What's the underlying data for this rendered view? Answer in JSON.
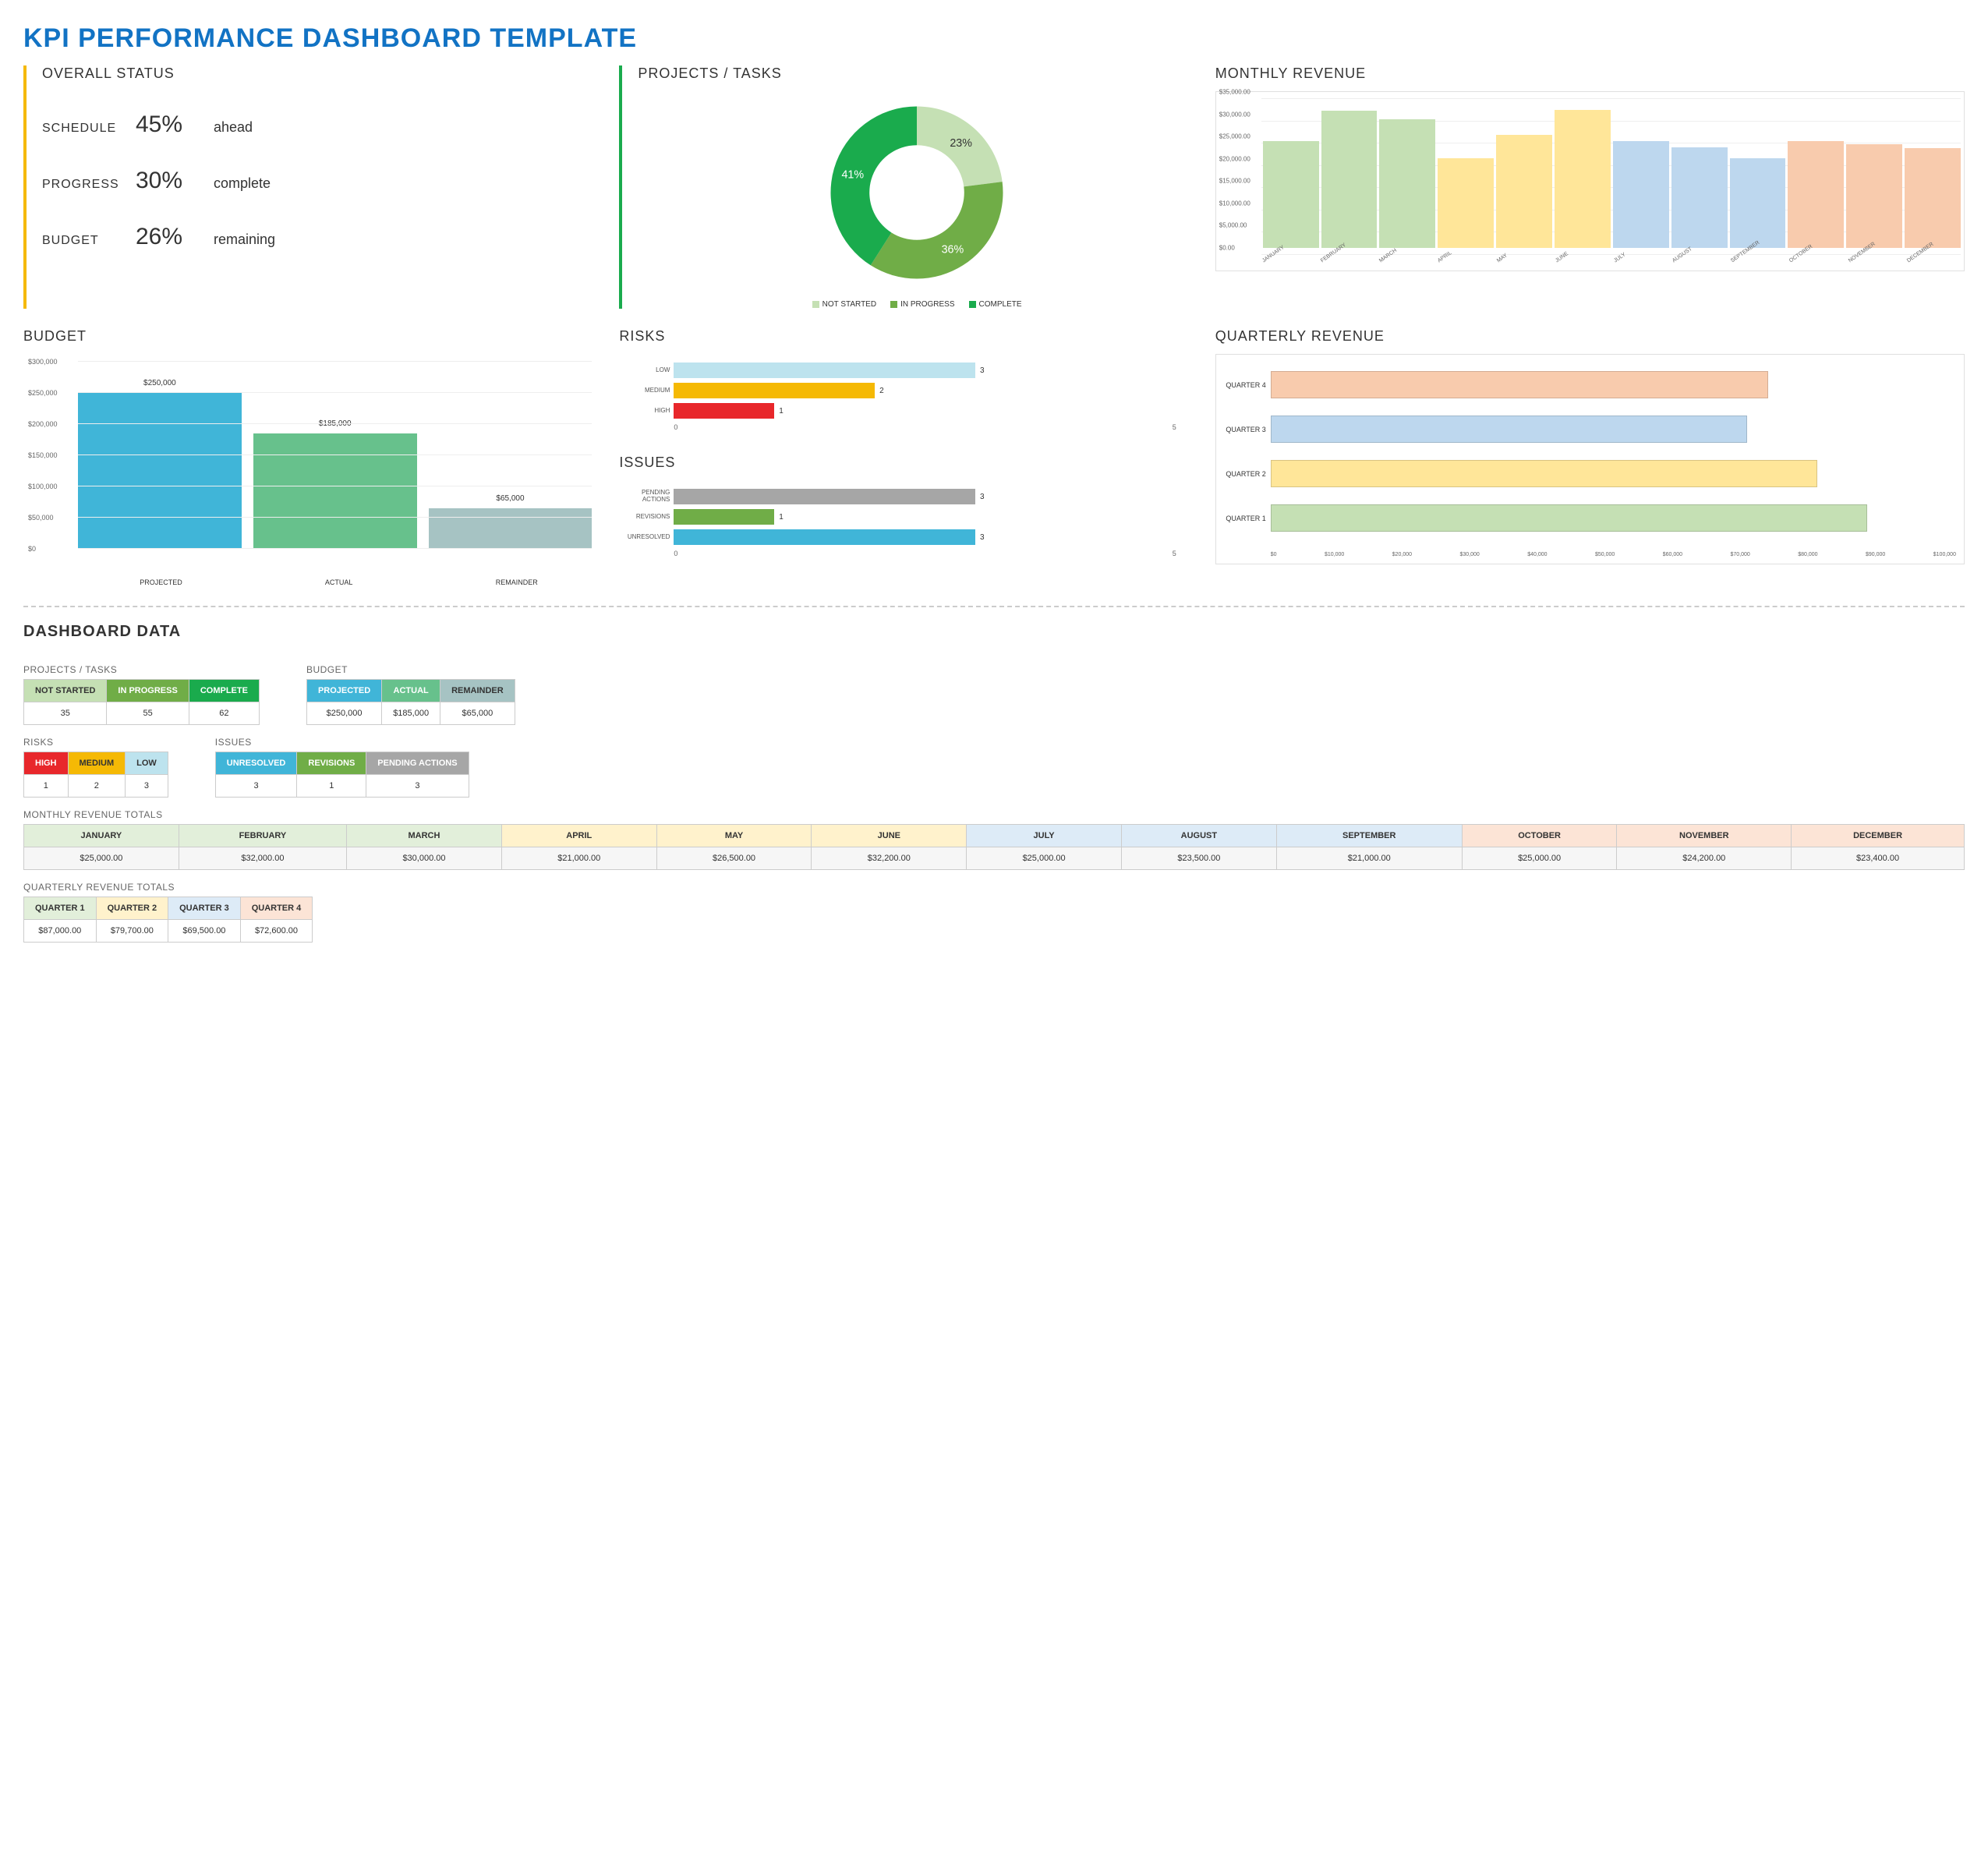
{
  "title": "KPI PERFORMANCE DASHBOARD TEMPLATE",
  "title_color": "#1273c4",
  "overall_status": {
    "title": "OVERALL STATUS",
    "accent_color": "#f5b905",
    "rows": [
      {
        "label": "SCHEDULE",
        "value": "45%",
        "suffix": "ahead"
      },
      {
        "label": "PROGRESS",
        "value": "30%",
        "suffix": "complete"
      },
      {
        "label": "BUDGET",
        "value": "26%",
        "suffix": "remaining"
      }
    ]
  },
  "projects_tasks": {
    "title": "PROJECTS / TASKS",
    "accent_color": "#1aab4d",
    "slices": [
      {
        "label": "NOT STARTED",
        "pct": 23,
        "color": "#c5e0b4"
      },
      {
        "label": "IN PROGRESS",
        "pct": 36,
        "color": "#70ad47"
      },
      {
        "label": "COMPLETE",
        "pct": 41,
        "color": "#1aab4d"
      }
    ],
    "label_fontsize": 10,
    "inner_radius_pct": 55
  },
  "monthly_revenue": {
    "title": "MONTHLY REVENUE",
    "type": "bar",
    "ylim": [
      0,
      35000
    ],
    "ytick_step": 5000,
    "grid_color": "#eeeeee",
    "border_color": "#e0e0e0",
    "bars": [
      {
        "label": "JANUARY",
        "value": 25000,
        "color": "#c5e0b4"
      },
      {
        "label": "FEBRUARY",
        "value": 32000,
        "color": "#c5e0b4"
      },
      {
        "label": "MARCH",
        "value": 30000,
        "color": "#c5e0b4"
      },
      {
        "label": "APRIL",
        "value": 21000,
        "color": "#ffe699"
      },
      {
        "label": "MAY",
        "value": 26500,
        "color": "#ffe699"
      },
      {
        "label": "JUNE",
        "value": 32200,
        "color": "#ffe699"
      },
      {
        "label": "JULY",
        "value": 25000,
        "color": "#bdd7ee"
      },
      {
        "label": "AUGUST",
        "value": 23500,
        "color": "#bdd7ee"
      },
      {
        "label": "SEPTEMBER",
        "value": 21000,
        "color": "#bdd7ee"
      },
      {
        "label": "OCTOBER",
        "value": 25000,
        "color": "#f8cbad"
      },
      {
        "label": "NOVEMBER",
        "value": 24200,
        "color": "#f8cbad"
      },
      {
        "label": "DECEMBER",
        "value": 23400,
        "color": "#f8cbad"
      }
    ]
  },
  "budget_chart": {
    "title": "BUDGET",
    "type": "bar",
    "ylim": [
      0,
      300000
    ],
    "ytick_step": 50000,
    "bars": [
      {
        "label": "PROJECTED",
        "value": 250000,
        "display": "$250,000",
        "color": "#40b5d8"
      },
      {
        "label": "ACTUAL",
        "value": 185000,
        "display": "$185,000",
        "color": "#67c18c"
      },
      {
        "label": "REMAINDER",
        "value": 65000,
        "display": "$65,000",
        "color": "#a6c3c3"
      }
    ]
  },
  "risks": {
    "title": "RISKS",
    "type": "hbar",
    "xlim": [
      0,
      5
    ],
    "bars": [
      {
        "label": "LOW",
        "value": 3,
        "color": "#bde3ee"
      },
      {
        "label": "MEDIUM",
        "value": 2,
        "color": "#f5b905"
      },
      {
        "label": "HIGH",
        "value": 1,
        "color": "#e8272b"
      }
    ]
  },
  "issues": {
    "title": "ISSUES",
    "type": "hbar",
    "xlim": [
      0,
      5
    ],
    "bars": [
      {
        "label": "PENDING ACTIONS",
        "value": 3,
        "color": "#a6a6a6"
      },
      {
        "label": "REVISIONS",
        "value": 1,
        "color": "#70ad47"
      },
      {
        "label": "UNRESOLVED",
        "value": 3,
        "color": "#40b5d8"
      }
    ]
  },
  "quarterly_revenue": {
    "title": "QUARTERLY REVENUE",
    "type": "hbar",
    "xlim": [
      0,
      100000
    ],
    "xtick_step": 10000,
    "bars": [
      {
        "label": "QUARTER 4",
        "value": 72600,
        "color": "#f8cbad"
      },
      {
        "label": "QUARTER 3",
        "value": 69500,
        "color": "#bdd7ee"
      },
      {
        "label": "QUARTER 2",
        "value": 79700,
        "color": "#ffe699"
      },
      {
        "label": "QUARTER 1",
        "value": 87000,
        "color": "#c5e0b4"
      }
    ]
  },
  "dashboard_data": {
    "title": "DASHBOARD DATA",
    "projects": {
      "title": "PROJECTS / TASKS",
      "headers": [
        {
          "label": "NOT STARTED",
          "bg": "#c5e0b4"
        },
        {
          "label": "IN PROGRESS",
          "bg": "#70ad47",
          "fg": "#ffffff"
        },
        {
          "label": "COMPLETE",
          "bg": "#1aab4d",
          "fg": "#ffffff"
        }
      ],
      "row": [
        "35",
        "55",
        "62"
      ]
    },
    "budget": {
      "title": "BUDGET",
      "headers": [
        {
          "label": "PROJECTED",
          "bg": "#40b5d8",
          "fg": "#ffffff"
        },
        {
          "label": "ACTUAL",
          "bg": "#67c18c",
          "fg": "#ffffff"
        },
        {
          "label": "REMAINDER",
          "bg": "#a6c3c3"
        }
      ],
      "row": [
        "$250,000",
        "$185,000",
        "$65,000"
      ]
    },
    "risks_table": {
      "title": "RISKS",
      "headers": [
        {
          "label": "HIGH",
          "bg": "#e8272b",
          "fg": "#ffffff"
        },
        {
          "label": "MEDIUM",
          "bg": "#f5b905"
        },
        {
          "label": "LOW",
          "bg": "#bde3ee"
        }
      ],
      "row": [
        "1",
        "2",
        "3"
      ]
    },
    "issues_table": {
      "title": "ISSUES",
      "headers": [
        {
          "label": "UNRESOLVED",
          "bg": "#40b5d8",
          "fg": "#ffffff"
        },
        {
          "label": "REVISIONS",
          "bg": "#70ad47",
          "fg": "#ffffff"
        },
        {
          "label": "PENDING ACTIONS",
          "bg": "#a6a6a6",
          "fg": "#ffffff"
        }
      ],
      "row": [
        "3",
        "1",
        "3"
      ]
    },
    "monthly_totals": {
      "title": "MONTHLY REVENUE TOTALS",
      "headers": [
        {
          "label": "JANUARY",
          "bg": "#e2efda"
        },
        {
          "label": "FEBRUARY",
          "bg": "#e2efda"
        },
        {
          "label": "MARCH",
          "bg": "#e2efda"
        },
        {
          "label": "APRIL",
          "bg": "#fff2cc"
        },
        {
          "label": "MAY",
          "bg": "#fff2cc"
        },
        {
          "label": "JUNE",
          "bg": "#fff2cc"
        },
        {
          "label": "JULY",
          "bg": "#ddebf7"
        },
        {
          "label": "AUGUST",
          "bg": "#ddebf7"
        },
        {
          "label": "SEPTEMBER",
          "bg": "#ddebf7"
        },
        {
          "label": "OCTOBER",
          "bg": "#fce4d6"
        },
        {
          "label": "NOVEMBER",
          "bg": "#fce4d6"
        },
        {
          "label": "DECEMBER",
          "bg": "#fce4d6"
        }
      ],
      "row": [
        "$25,000.00",
        "$32,000.00",
        "$30,000.00",
        "$21,000.00",
        "$26,500.00",
        "$32,200.00",
        "$25,000.00",
        "$23,500.00",
        "$21,000.00",
        "$25,000.00",
        "$24,200.00",
        "$23,400.00"
      ]
    },
    "quarterly_totals": {
      "title": "QUARTERLY REVENUE TOTALS",
      "headers": [
        {
          "label": "QUARTER 1",
          "bg": "#e2efda"
        },
        {
          "label": "QUARTER 2",
          "bg": "#fff2cc"
        },
        {
          "label": "QUARTER 3",
          "bg": "#ddebf7"
        },
        {
          "label": "QUARTER 4",
          "bg": "#fce4d6"
        }
      ],
      "row": [
        "$87,000.00",
        "$79,700.00",
        "$69,500.00",
        "$72,600.00"
      ]
    }
  }
}
